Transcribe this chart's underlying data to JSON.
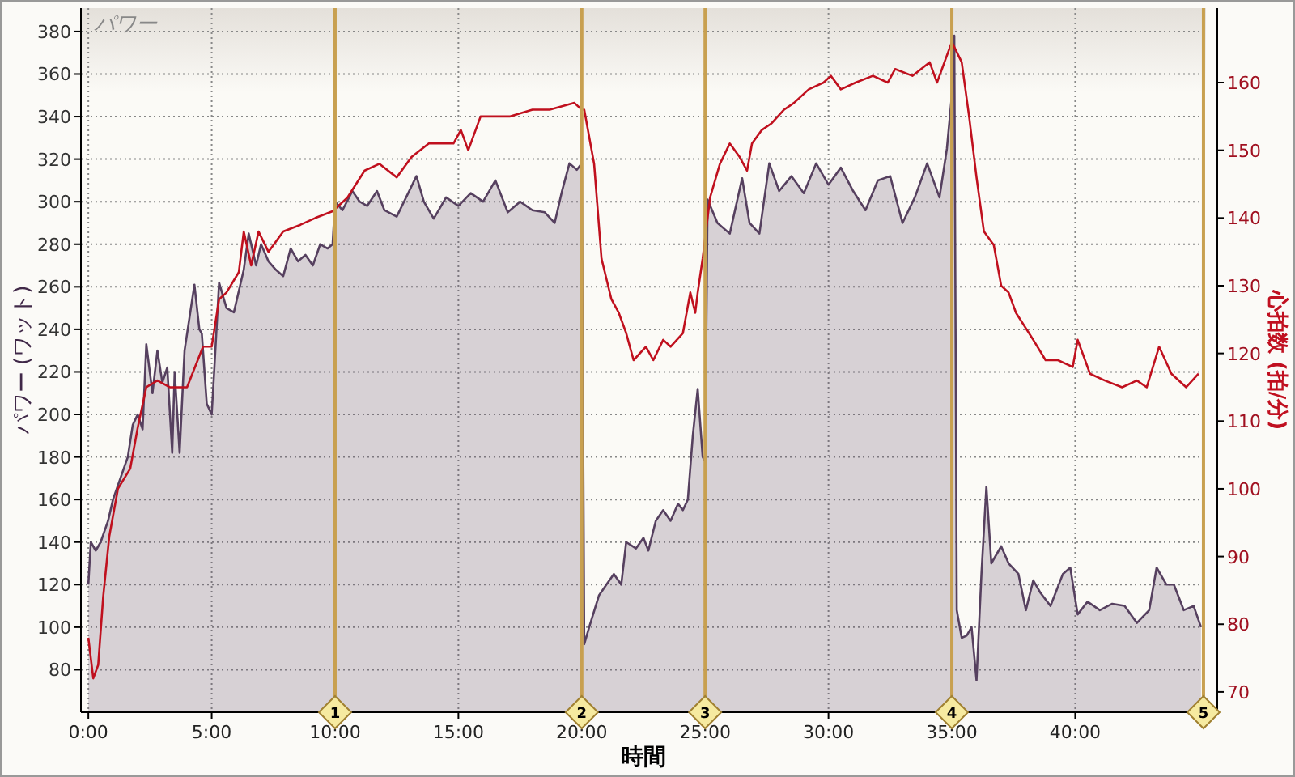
{
  "chart_data": {
    "type": "area",
    "title": "パワー",
    "xlabel": "時間",
    "ylabel": "パワー (ワット)",
    "y2label": "心拍数 (拍/分)",
    "xlim": [
      -0.3,
      45.3
    ],
    "xticks": [
      {
        "value": 0,
        "label": "0:00"
      },
      {
        "value": 5,
        "label": "5:00"
      },
      {
        "value": 10,
        "label": "10:00"
      },
      {
        "value": 15,
        "label": "15:00"
      },
      {
        "value": 20,
        "label": "20:00"
      },
      {
        "value": 25,
        "label": "25:00"
      },
      {
        "value": 30,
        "label": "30:00"
      },
      {
        "value": 35,
        "label": "35:00"
      },
      {
        "value": 40,
        "label": "40:00"
      }
    ],
    "ylim": [
      60,
      391
    ],
    "yticks": [
      80,
      100,
      120,
      140,
      160,
      180,
      200,
      220,
      240,
      260,
      280,
      300,
      320,
      340,
      360,
      380
    ],
    "y2lim": [
      67,
      171
    ],
    "y2ticks": [
      70,
      80,
      90,
      100,
      110,
      120,
      130,
      140,
      150,
      160
    ],
    "grid": true,
    "ref_lines": [
      {
        "axis": "x",
        "value": 10,
        "color": "#c8a050"
      },
      {
        "axis": "x",
        "value": 20,
        "color": "#c8a050"
      },
      {
        "axis": "x",
        "value": 25,
        "color": "#c8a050"
      },
      {
        "axis": "x",
        "value": 35,
        "color": "#c8a050"
      },
      {
        "axis": "x",
        "value": 45.2,
        "color": "#c8a050"
      }
    ],
    "annotations": [
      {
        "text": "1",
        "x": 10,
        "y": 60
      },
      {
        "text": "2",
        "x": 20,
        "y": 60
      },
      {
        "text": "3",
        "x": 25,
        "y": 60
      },
      {
        "text": "4",
        "x": 35,
        "y": 60
      },
      {
        "text": "5",
        "x": 45.2,
        "y": 60
      }
    ],
    "series": [
      {
        "type": "area",
        "color": "#56405f",
        "x": [
          0,
          0.1,
          0.3,
          0.5,
          0.8,
          1.0,
          1.3,
          1.6,
          1.8,
          2.0,
          2.2,
          2.35,
          2.6,
          2.8,
          3.0,
          3.2,
          3.4,
          3.5,
          3.7,
          3.9,
          4.3,
          4.5,
          4.6,
          4.8,
          5.0,
          5.1,
          5.3,
          5.6,
          5.9,
          6.1,
          6.3,
          6.5,
          6.8,
          7.0,
          7.3,
          7.6,
          7.9,
          8.2,
          8.5,
          8.8,
          9.1,
          9.4,
          9.7,
          9.9,
          10.0,
          10.3,
          10.7,
          11.0,
          11.3,
          11.7,
          12.0,
          12.5,
          13.3,
          13.6,
          14.0,
          14.5,
          15.0,
          15.5,
          16.0,
          16.5,
          17.0,
          17.5,
          18.0,
          18.5,
          18.9,
          19.2,
          19.5,
          19.8,
          20.0,
          20.1,
          20.3,
          20.7,
          21.0,
          21.3,
          21.6,
          21.8,
          22.2,
          22.5,
          22.7,
          23.0,
          23.3,
          23.6,
          23.9,
          24.1,
          24.3,
          24.5,
          24.7,
          24.9,
          25.0,
          25.1,
          25.5,
          26.0,
          26.5,
          26.8,
          27.2,
          27.6,
          28.0,
          28.5,
          29.0,
          29.5,
          30.0,
          30.5,
          31.0,
          31.5,
          32.0,
          32.5,
          33.0,
          33.5,
          34.0,
          34.5,
          34.8,
          35.0,
          35.1,
          35.2,
          35.4,
          35.6,
          35.8,
          36.0,
          36.2,
          36.4,
          36.6,
          37.0,
          37.3,
          37.7,
          38.0,
          38.3,
          38.6,
          39.0,
          39.5,
          39.8,
          40.1,
          40.5,
          41.0,
          41.5,
          42.0,
          42.5,
          43.0,
          43.3,
          43.7,
          44.0,
          44.4,
          44.8,
          45.1
        ],
        "values": [
          120,
          140,
          136,
          140,
          150,
          160,
          170,
          180,
          195,
          200,
          193,
          233,
          210,
          230,
          215,
          222,
          182,
          220,
          182,
          230,
          261,
          240,
          238,
          205,
          200,
          220,
          262,
          250,
          248,
          258,
          268,
          285,
          270,
          280,
          272,
          268,
          265,
          278,
          272,
          275,
          270,
          280,
          278,
          280,
          300,
          296,
          305,
          300,
          298,
          305,
          296,
          293,
          312,
          300,
          292,
          302,
          298,
          304,
          300,
          310,
          295,
          300,
          296,
          295,
          290,
          305,
          318,
          315,
          318,
          92,
          100,
          115,
          120,
          125,
          120,
          140,
          137,
          142,
          136,
          150,
          155,
          150,
          158,
          155,
          160,
          190,
          212,
          180,
          178,
          301,
          290,
          285,
          311,
          290,
          285,
          318,
          305,
          312,
          304,
          318,
          308,
          316,
          305,
          296,
          310,
          312,
          290,
          302,
          318,
          302,
          325,
          350,
          378,
          108,
          95,
          96,
          100,
          75,
          125,
          166,
          130,
          138,
          130,
          125,
          108,
          122,
          116,
          110,
          125,
          128,
          106,
          112,
          108,
          111,
          110,
          102,
          108,
          128,
          120,
          120,
          108,
          110,
          100
        ]
      },
      {
        "type": "line",
        "axis": "y2",
        "color": "#c0101e",
        "x": [
          0,
          0.2,
          0.4,
          0.6,
          0.85,
          1.2,
          1.7,
          2.0,
          2.35,
          2.8,
          3.3,
          4.0,
          4.65,
          5.0,
          5.3,
          5.6,
          6.1,
          6.3,
          6.6,
          6.9,
          7.3,
          7.9,
          8.6,
          9.2,
          9.9,
          10.5,
          11.2,
          11.8,
          12.5,
          13.1,
          13.8,
          14.8,
          15.1,
          15.4,
          15.9,
          17.1,
          18.0,
          18.7,
          19.7,
          20.0,
          20.1,
          20.5,
          20.8,
          21.2,
          21.5,
          21.8,
          22.1,
          22.6,
          22.9,
          23.3,
          23.6,
          24.1,
          24.4,
          24.6,
          24.7,
          24.9,
          25.2,
          25.6,
          26.0,
          26.4,
          26.7,
          26.9,
          27.3,
          27.7,
          28.2,
          28.6,
          29.2,
          29.8,
          30.1,
          30.5,
          31.1,
          31.8,
          32.4,
          32.7,
          33.4,
          34.1,
          34.4,
          34.7,
          35.0,
          35.4,
          35.7,
          36.0,
          36.3,
          36.7,
          37.0,
          37.3,
          37.6,
          38.3,
          38.8,
          39.3,
          39.9,
          40.1,
          40.6,
          41.2,
          41.9,
          42.5,
          42.9,
          43.4,
          43.9,
          44.5,
          45.0
        ],
        "values": [
          78,
          72,
          74,
          84,
          93,
          100,
          103,
          109,
          115,
          116,
          115,
          115,
          121,
          121,
          128,
          129,
          132,
          138,
          133,
          138,
          135,
          138,
          139,
          140,
          141,
          143,
          147,
          148,
          146,
          149,
          151,
          151,
          153,
          150,
          155,
          155,
          156,
          156,
          157,
          156,
          156,
          148,
          134,
          128,
          126,
          123,
          119,
          121,
          119,
          122,
          121,
          123,
          129,
          126,
          129,
          134,
          143,
          148,
          151,
          149,
          147,
          151,
          153,
          154,
          156,
          157,
          159,
          160,
          161,
          159,
          160,
          161,
          160,
          162,
          161,
          163,
          160,
          163,
          166,
          163,
          155,
          146,
          138,
          136,
          130,
          129,
          126,
          122,
          119,
          119,
          118,
          122,
          117,
          116,
          115,
          116,
          115,
          121,
          117,
          115,
          117
        ]
      }
    ]
  }
}
